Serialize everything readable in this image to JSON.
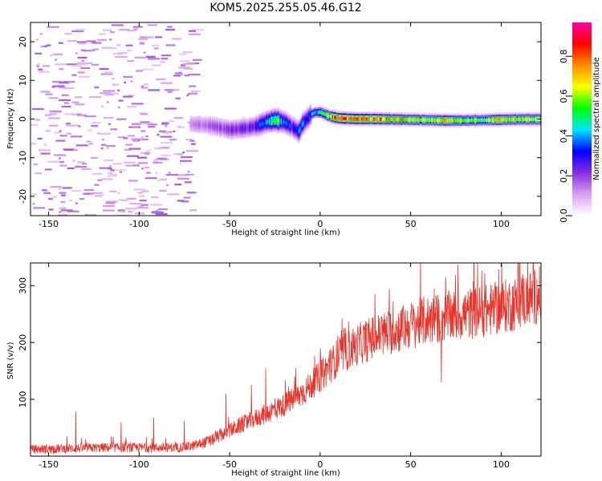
{
  "title": "KOM5.2025.255.05.46.G12",
  "chart_data": [
    {
      "type": "heatmap",
      "xlabel": "Height of straight line (km)",
      "ylabel": "Frequency (Hz)",
      "xlim": [
        -160,
        122
      ],
      "ylim": [
        -25,
        25
      ],
      "xticks": [
        -150,
        -100,
        -50,
        0,
        50,
        100
      ],
      "yticks": [
        -20,
        -10,
        0,
        10,
        20
      ],
      "colorbar": {
        "label": "Normalized spectral amplitude",
        "range": [
          0,
          0.97
        ],
        "ticks": [
          0.0,
          0.2,
          0.4,
          0.6,
          0.8
        ],
        "colors": [
          "#ffffff",
          "#d9a0f0",
          "#8a2be2",
          "#0000ff",
          "#00e5ff",
          "#00ff00",
          "#ffff00",
          "#ff8c00",
          "#ff0000",
          "#ff00a0"
        ]
      },
      "ridge": {
        "x": [
          -72,
          -60,
          -50,
          -40,
          -35,
          -30,
          -25,
          -20,
          -15,
          -12,
          -10,
          -7,
          -5,
          -3,
          0,
          5,
          10,
          20,
          30,
          40,
          50,
          60,
          70,
          80,
          90,
          100,
          110,
          122
        ],
        "freq": [
          -1.0,
          -1.5,
          -2.5,
          -2.0,
          -1.5,
          -0.5,
          0,
          -0.5,
          -2.0,
          -3.0,
          -1.0,
          0.5,
          1.5,
          2.0,
          2.0,
          1.0,
          0.5,
          0.3,
          0.3,
          0.2,
          0.1,
          0.0,
          -0.1,
          -0.1,
          0.0,
          0.1,
          0.2,
          0.2
        ],
        "amp": [
          0.12,
          0.18,
          0.22,
          0.25,
          0.3,
          0.45,
          0.6,
          0.35,
          0.3,
          0.35,
          0.4,
          0.3,
          0.4,
          0.45,
          0.5,
          0.7,
          0.85,
          0.9,
          0.8,
          0.75,
          0.7,
          0.6,
          0.8,
          0.65,
          0.55,
          0.75,
          0.7,
          0.6
        ]
      },
      "noise_region_x": [
        -160,
        -70
      ]
    },
    {
      "type": "line",
      "xlabel": "Height of straight line (km)",
      "ylabel": "SNR (v/v)",
      "xlim": [
        -160,
        122
      ],
      "ylim": [
        0,
        340
      ],
      "xticks": [
        -150,
        -100,
        -50,
        0,
        50,
        100
      ],
      "yticks": [
        100,
        200,
        300
      ],
      "color": "#e8332a",
      "trend": {
        "x": [
          -160,
          -120,
          -80,
          -70,
          -60,
          -50,
          -40,
          -30,
          -20,
          -10,
          0,
          10,
          20,
          30,
          40,
          50,
          60,
          70,
          80,
          90,
          100,
          110,
          122
        ],
        "y": [
          12,
          15,
          15,
          18,
          28,
          45,
          60,
          75,
          90,
          110,
          140,
          175,
          195,
          210,
          220,
          230,
          240,
          245,
          250,
          255,
          262,
          270,
          285
        ]
      },
      "spikes": [
        {
          "x": -135,
          "y": 78
        },
        {
          "x": -110,
          "y": 60
        },
        {
          "x": -92,
          "y": 68
        },
        {
          "x": -75,
          "y": 62
        },
        {
          "x": -52,
          "y": 110
        },
        {
          "x": -38,
          "y": 125
        },
        {
          "x": -30,
          "y": 155
        },
        {
          "x": -14,
          "y": 140
        },
        {
          "x": 5,
          "y": 185
        },
        {
          "x": 20,
          "y": 215
        },
        {
          "x": 34,
          "y": 245
        },
        {
          "x": 67,
          "y": 130
        },
        {
          "x": 87,
          "y": 340
        },
        {
          "x": 112,
          "y": 320
        }
      ]
    }
  ]
}
